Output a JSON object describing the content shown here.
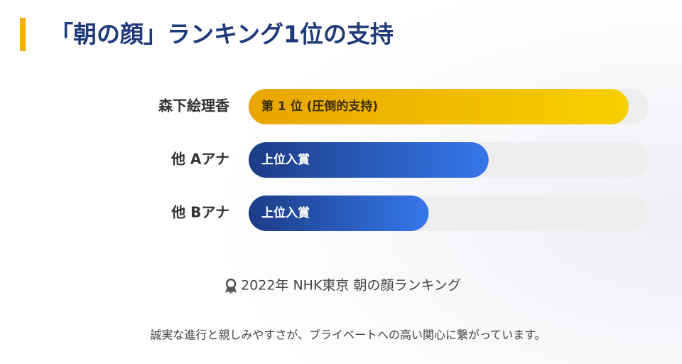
{
  "chart_data": {
    "type": "hbar",
    "title": "「朝の顔」ランキング1位の支持",
    "categories": [
      "森下絵理香",
      "他 Aアナ",
      "他 Bアナ"
    ],
    "values": [
      95,
      60,
      45
    ],
    "xlim": [
      0,
      100
    ],
    "bar_labels": [
      "第 1 位 (圧倒的支持)",
      "上位入賞",
      "上位入賞"
    ],
    "gradients": [
      [
        "#e8a500",
        "#f7d000"
      ],
      [
        "#1c3c85",
        "#3677ea"
      ],
      [
        "#1c3c85",
        "#3677ea"
      ]
    ],
    "label_colors": [
      "#3a2c05",
      "#ffffff",
      "#ffffff"
    ],
    "track_color": "#eeeeee",
    "source": "2022年 NHK東京 朝の顔ランキング",
    "footnote": "誠実な進行と親しみやすさが、ブライベートへの高い関心に繋がっています。"
  }
}
